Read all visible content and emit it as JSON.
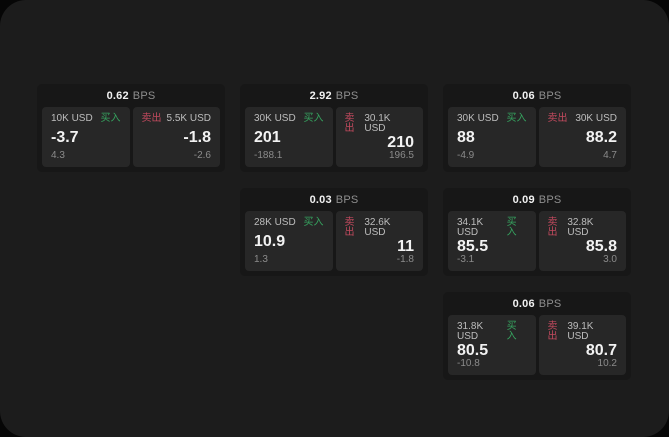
{
  "labels": {
    "bps_unit": "BPS",
    "buy": "买入",
    "sell": "卖出"
  },
  "colors": {
    "outer_bg": "#060606",
    "page_bg": "#1c1c1c",
    "card_bg": "#171717",
    "panel_bg": "#272727",
    "buy_green": "#36a35f",
    "sell_red": "#c24a5e",
    "text_primary": "#f2f2f2",
    "text_secondary": "#bdbdbd",
    "text_muted": "#8b8b8b",
    "text_muted2": "#8f8f8f"
  },
  "cards": [
    {
      "bps": "0.62",
      "buy": {
        "notional": "10K USD",
        "price": "-3.7",
        "change": "4.3"
      },
      "sell": {
        "notional": "5.5K USD",
        "price": "-1.8",
        "change": "-2.6"
      }
    },
    {
      "bps": "2.92",
      "buy": {
        "notional": "30K USD",
        "price": "201",
        "change": "-188.1"
      },
      "sell": {
        "notional": "30.1K USD",
        "price": "210",
        "change": "196.5"
      }
    },
    {
      "bps": "0.06",
      "buy": {
        "notional": "30K USD",
        "price": "88",
        "change": "-4.9"
      },
      "sell": {
        "notional": "30K USD",
        "price": "88.2",
        "change": "4.7"
      }
    },
    {
      "bps": "0.03",
      "buy": {
        "notional": "28K USD",
        "price": "10.9",
        "change": "1.3"
      },
      "sell": {
        "notional": "32.6K USD",
        "price": "11",
        "change": "-1.8"
      }
    },
    {
      "bps": "0.09",
      "buy": {
        "notional": "34.1K USD",
        "price": "85.5",
        "change": "-3.1"
      },
      "sell": {
        "notional": "32.8K USD",
        "price": "85.8",
        "change": "3.0"
      }
    },
    {
      "bps": "0.06",
      "buy": {
        "notional": "31.8K USD",
        "price": "80.5",
        "change": "-10.8"
      },
      "sell": {
        "notional": "39.1K USD",
        "price": "80.7",
        "change": "10.2"
      }
    }
  ]
}
